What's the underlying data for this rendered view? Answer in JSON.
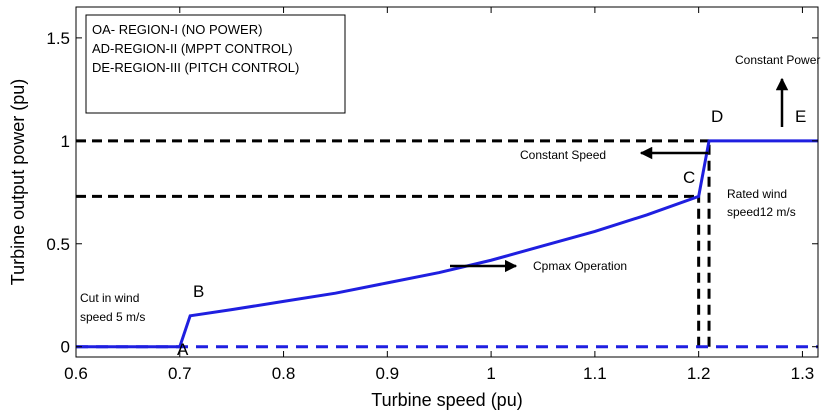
{
  "chart_data": {
    "type": "line",
    "xlabel": "Turbine speed (pu)",
    "ylabel": "Turbine output power (pu)",
    "xlim": [
      0.6,
      1.315
    ],
    "ylim": [
      -0.05,
      1.65
    ],
    "x_ticks": [
      0.6,
      0.7,
      0.8,
      0.9,
      1,
      1.1,
      1.2,
      1.3
    ],
    "x_tick_labels": [
      "0.6",
      "0.7",
      "0.8",
      "0.9",
      "1",
      "1.1",
      "1.2",
      "1.3"
    ],
    "y_ticks": [
      0,
      0.5,
      1,
      1.5
    ],
    "y_tick_labels": [
      "0",
      "0.5",
      "1",
      "1.5"
    ],
    "grid": false,
    "legend_box": [
      "OA- REGION-I (NO POWER)",
      "AD-REGION-II (MPPT CONTROL)",
      "DE-REGION-III (PITCH CONTROL)"
    ],
    "series": [
      {
        "style": "solid",
        "color": "#1f1fe0",
        "x": [
          0.6,
          0.7,
          0.71,
          0.75,
          0.8,
          0.85,
          0.9,
          0.95,
          1.0,
          1.05,
          1.1,
          1.15,
          1.2,
          1.21,
          1.315
        ],
        "y": [
          0,
          0,
          0.15,
          0.18,
          0.22,
          0.26,
          0.31,
          0.36,
          0.42,
          0.49,
          0.56,
          0.64,
          0.73,
          1.0,
          1.0
        ]
      },
      {
        "style": "dashed",
        "color": "#1f1fe0",
        "x": [
          0.6,
          1.315
        ],
        "y": [
          0,
          0
        ]
      }
    ],
    "reference_lines": [
      {
        "style": "dashed",
        "color": "#000000",
        "x": [
          0.6,
          1.21
        ],
        "y": [
          1.0,
          1.0
        ]
      },
      {
        "style": "dashed",
        "color": "#000000",
        "x": [
          0.6,
          1.2
        ],
        "y": [
          0.73,
          0.73
        ]
      },
      {
        "style": "dashed",
        "color": "#000000",
        "x": [
          1.2,
          1.2
        ],
        "y": [
          0,
          0.73
        ]
      },
      {
        "style": "dashed",
        "color": "#000000",
        "x": [
          1.21,
          1.21
        ],
        "y": [
          0,
          1.0
        ]
      }
    ],
    "points": [
      {
        "label": "A",
        "x": 0.7,
        "y": 0
      },
      {
        "label": "B",
        "x": 0.71,
        "y": 0.15
      },
      {
        "label": "C",
        "x": 1.2,
        "y": 0.73
      },
      {
        "label": "D",
        "x": 1.21,
        "y": 1.0
      },
      {
        "label": "E",
        "x": 1.31,
        "y": 1.0
      }
    ],
    "annotations": [
      {
        "text": "Constant Power",
        "arrow": "up"
      },
      {
        "text": "Constant Speed",
        "arrow": "left"
      },
      {
        "text": "Cpmax Operation",
        "arrow": "right"
      },
      {
        "text_lines": [
          "Rated wind",
          "speed12 m/s"
        ]
      },
      {
        "text_lines": [
          "Cut in wind",
          "speed 5 m/s"
        ]
      }
    ]
  }
}
